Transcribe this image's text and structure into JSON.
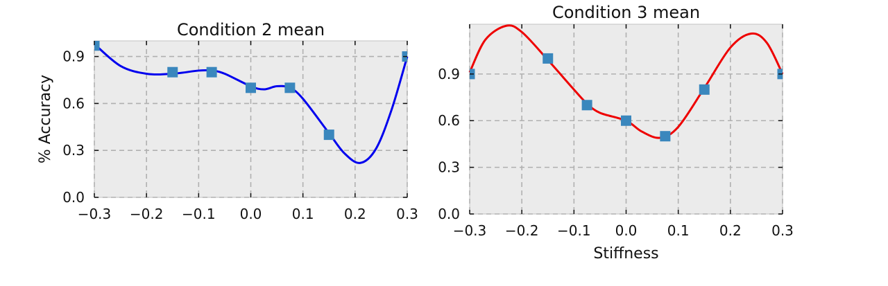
{
  "chart_data": [
    {
      "type": "line",
      "title": "Condition 2 mean",
      "xlabel": "",
      "ylabel": "% Accuracy",
      "xlim": [
        -0.3,
        0.3
      ],
      "ylim": [
        0.0,
        1.0
      ],
      "xticks": [
        -0.3,
        -0.2,
        -0.1,
        0.0,
        0.1,
        0.2,
        0.3
      ],
      "xtick_labels": [
        "−0.3",
        "−0.2",
        "−0.1",
        "0.0",
        "0.1",
        "0.2",
        "0.3"
      ],
      "yticks": [
        0.0,
        0.3,
        0.6,
        0.9
      ],
      "ytick_labels": [
        "0.0",
        "0.3",
        "0.6",
        "0.9"
      ],
      "grid": true,
      "points": {
        "x": [
          -0.3,
          -0.15,
          -0.075,
          0.0,
          0.075,
          0.15,
          0.3
        ],
        "y": [
          0.97,
          0.8,
          0.8,
          0.7,
          0.7,
          0.4,
          0.9
        ],
        "color": "#3a87bd"
      },
      "curve": {
        "color": "#0000ee",
        "x": [
          -0.3,
          -0.25,
          -0.2,
          -0.15,
          -0.1,
          -0.075,
          -0.05,
          0.0,
          0.025,
          0.05,
          0.075,
          0.1,
          0.15,
          0.18,
          0.21,
          0.24,
          0.27,
          0.3
        ],
        "y": [
          0.98,
          0.84,
          0.79,
          0.79,
          0.81,
          0.81,
          0.79,
          0.71,
          0.69,
          0.71,
          0.7,
          0.63,
          0.41,
          0.28,
          0.22,
          0.31,
          0.56,
          0.9
        ]
      }
    },
    {
      "type": "line",
      "title": "Condition 3 mean",
      "xlabel": "Stiffness",
      "ylabel": "",
      "xlim": [
        -0.3,
        0.3
      ],
      "ylim": [
        0.0,
        1.22
      ],
      "xticks": [
        -0.3,
        -0.2,
        -0.1,
        0.0,
        0.1,
        0.2,
        0.3
      ],
      "xtick_labels": [
        "−0.3",
        "−0.2",
        "−0.1",
        "0.0",
        "0.1",
        "0.2",
        "0.3"
      ],
      "yticks": [
        0.0,
        0.3,
        0.6,
        0.9
      ],
      "ytick_labels": [
        "0.0",
        "0.3",
        "0.6",
        "0.9"
      ],
      "grid": true,
      "points": {
        "x": [
          -0.3,
          -0.15,
          -0.075,
          0.0,
          0.075,
          0.15,
          0.3
        ],
        "y": [
          0.9,
          1.0,
          0.7,
          0.6,
          0.5,
          0.8,
          0.9
        ],
        "color": "#3a87bd"
      },
      "curve": {
        "color": "#ee0000",
        "x": [
          -0.3,
          -0.27,
          -0.23,
          -0.2,
          -0.15,
          -0.1,
          -0.075,
          -0.05,
          0.0,
          0.03,
          0.065,
          0.1,
          0.15,
          0.2,
          0.24,
          0.27,
          0.3
        ],
        "y": [
          0.91,
          1.12,
          1.21,
          1.17,
          0.99,
          0.8,
          0.71,
          0.65,
          0.6,
          0.53,
          0.49,
          0.56,
          0.81,
          1.07,
          1.16,
          1.1,
          0.9
        ]
      }
    }
  ]
}
